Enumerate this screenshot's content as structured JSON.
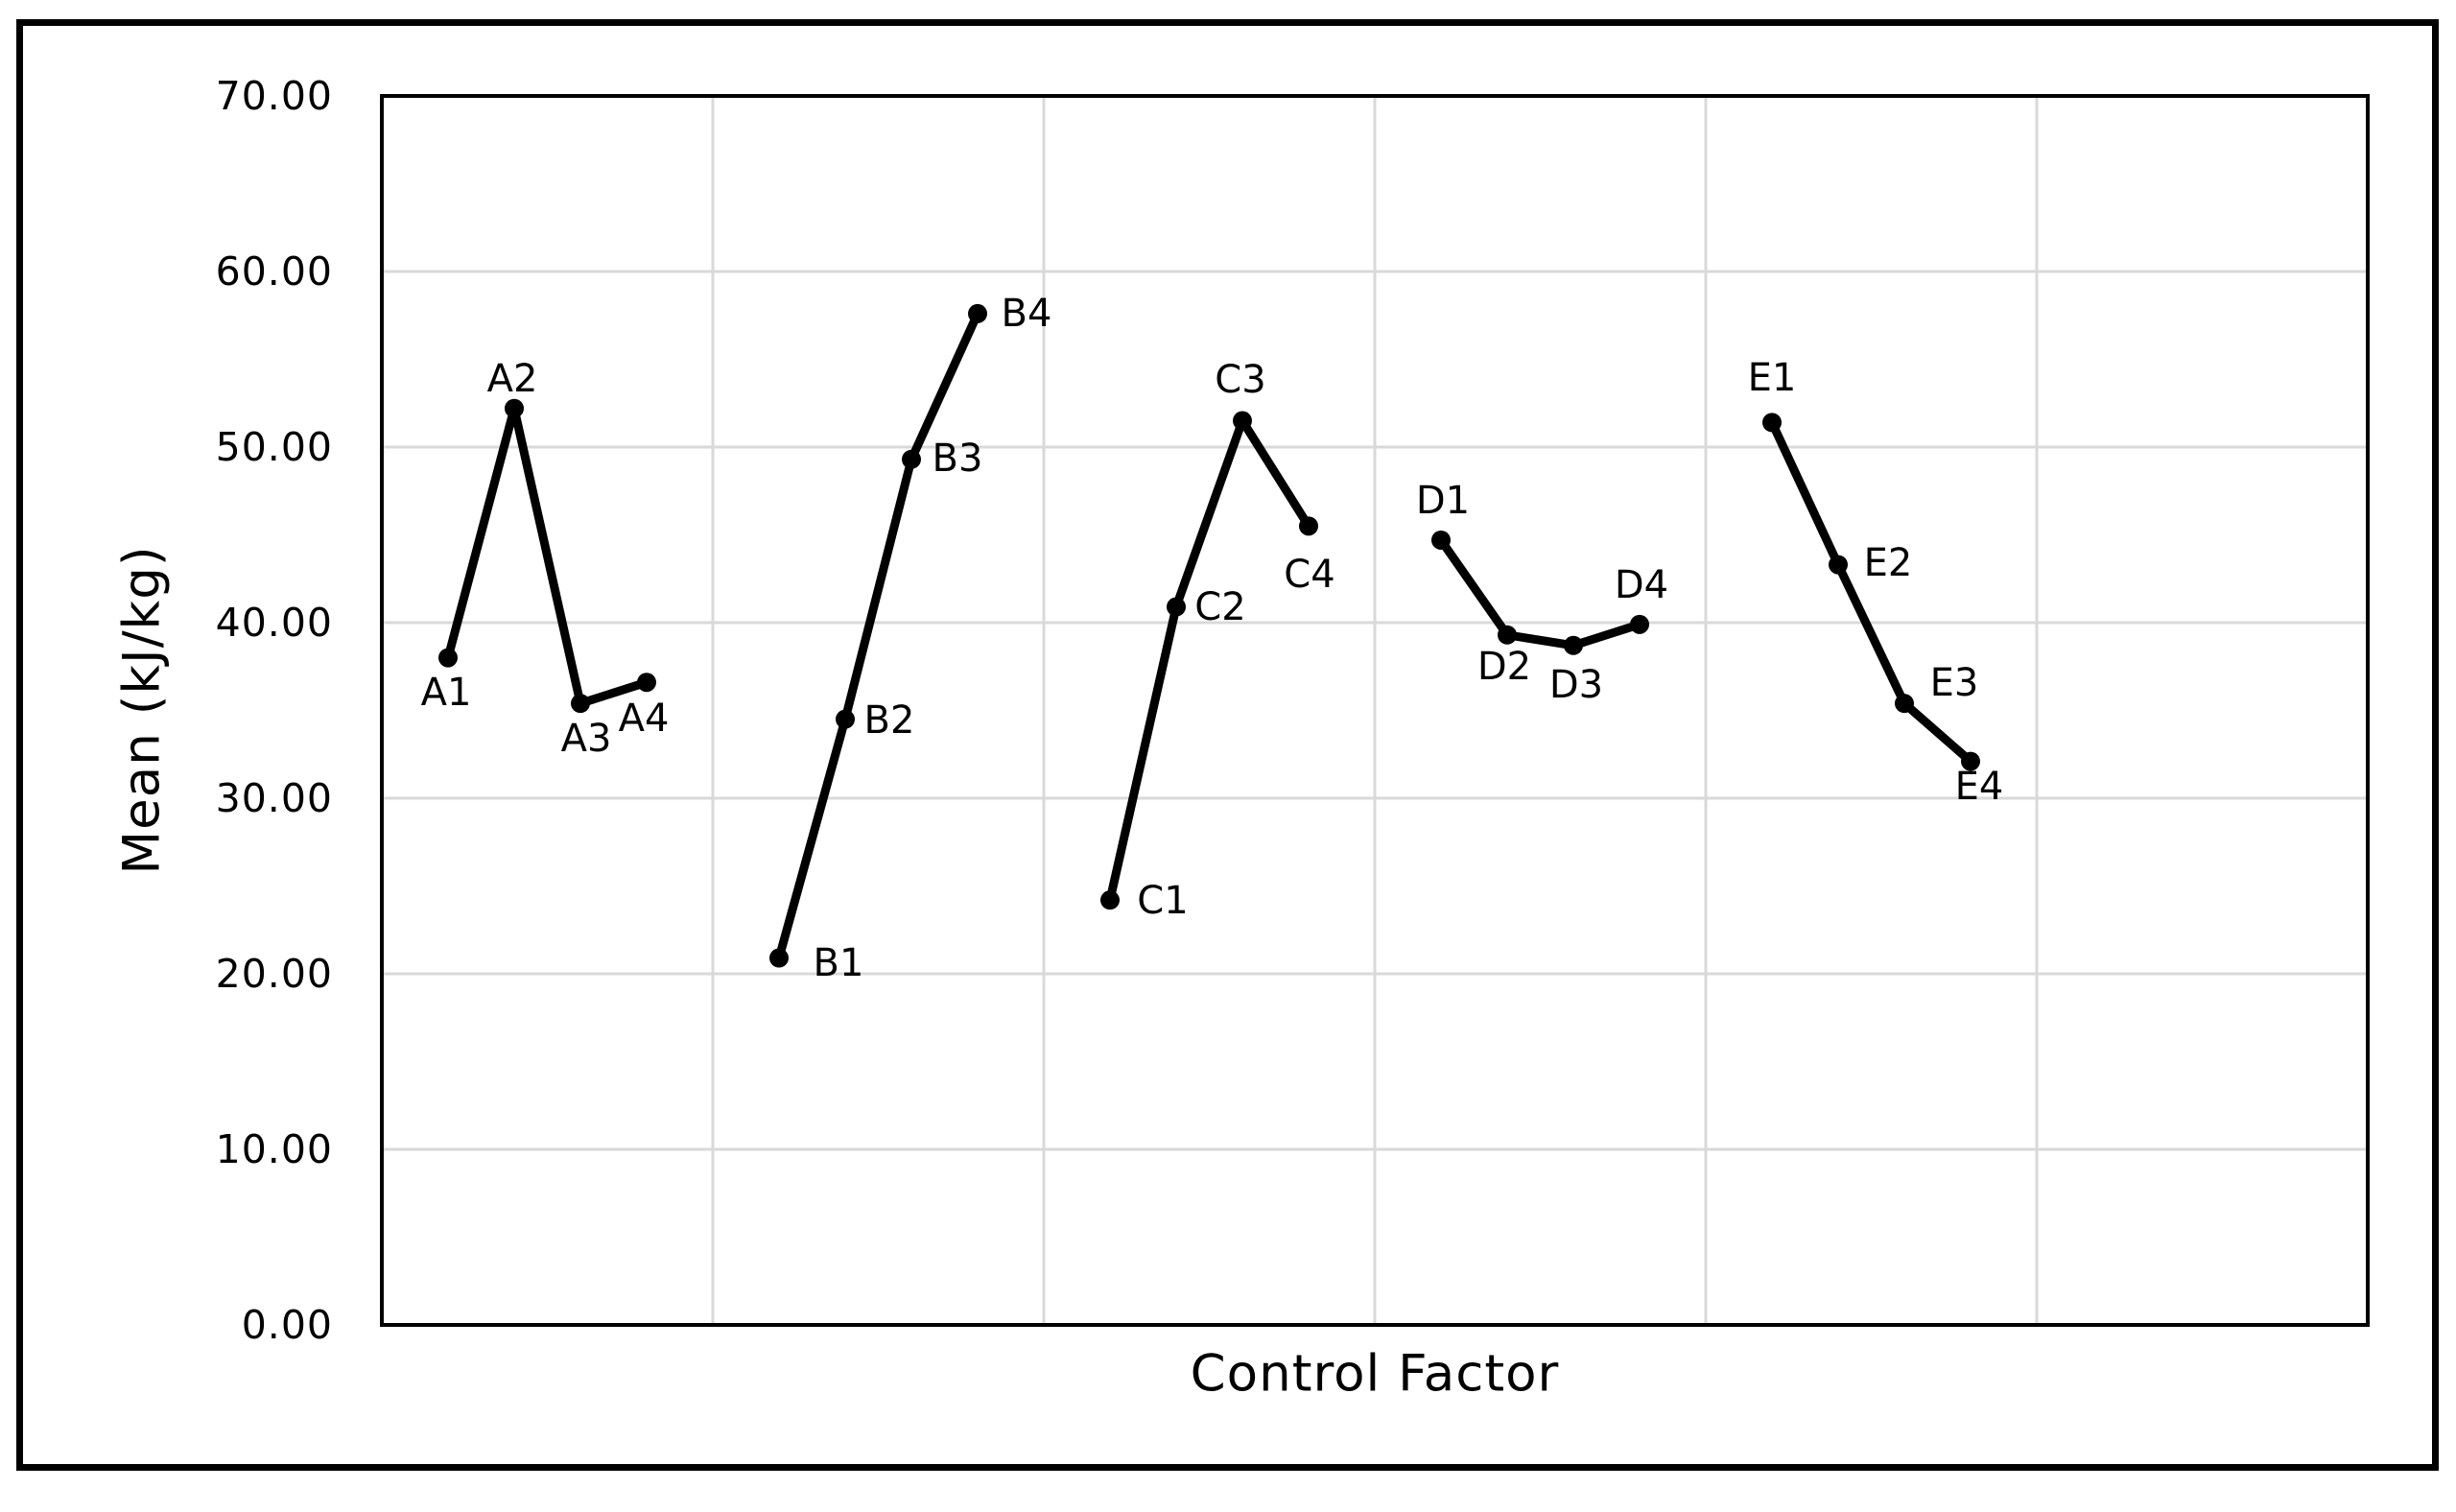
{
  "chart_data": {
    "type": "line",
    "title": "",
    "xlabel": "Control Factor",
    "ylabel": "Mean (kJ/kg)",
    "ylim": [
      0,
      70
    ],
    "y_major_unit": 10,
    "y_tick_labels": [
      "70.00",
      "60.00",
      "50.00",
      "40.00",
      "30.00",
      "20.00",
      "10.00",
      "0.00"
    ],
    "xlim": [
      0,
      30
    ],
    "x_major_unit": 5,
    "x_tick_labels_shown": false,
    "grid": "both",
    "legend": "none",
    "series": [
      {
        "name": "A",
        "x": [
          1,
          2,
          3,
          4
        ],
        "values": [
          38.0,
          52.2,
          35.4,
          36.6
        ],
        "point_labels": [
          "A1",
          "A2",
          "A3",
          "A4"
        ],
        "label_offsets": [
          [
            -2,
            36
          ],
          [
            -2,
            -31
          ],
          [
            6,
            37
          ],
          [
            -3,
            38
          ]
        ]
      },
      {
        "name": "B",
        "x": [
          6,
          7,
          8,
          9
        ],
        "values": [
          20.9,
          34.5,
          49.3,
          57.6
        ],
        "point_labels": [
          "B1",
          "B2",
          "B3",
          "B4"
        ],
        "label_offsets": [
          [
            62,
            5
          ],
          [
            46,
            1
          ],
          [
            48,
            -1
          ],
          [
            51,
            0
          ]
        ]
      },
      {
        "name": "C",
        "x": [
          11,
          12,
          13,
          14
        ],
        "values": [
          24.2,
          40.9,
          51.5,
          45.5
        ],
        "point_labels": [
          "C1",
          "C2",
          "C3",
          "C4"
        ],
        "label_offsets": [
          [
            55,
            1
          ],
          [
            46,
            0
          ],
          [
            -2,
            -43
          ],
          [
            1,
            51
          ]
        ]
      },
      {
        "name": "D",
        "x": [
          16,
          17,
          18,
          19
        ],
        "values": [
          44.7,
          39.3,
          38.7,
          39.9
        ],
        "point_labels": [
          "D1",
          "D2",
          "D3",
          "D4"
        ],
        "label_offsets": [
          [
            2,
            -41
          ],
          [
            -3,
            33
          ],
          [
            3,
            41
          ],
          [
            2,
            -41
          ]
        ]
      },
      {
        "name": "E",
        "x": [
          21,
          22,
          23,
          24
        ],
        "values": [
          51.4,
          43.3,
          35.4,
          32.1
        ],
        "point_labels": [
          "E1",
          "E2",
          "E3",
          "E4"
        ],
        "label_offsets": [
          [
            0,
            -46
          ],
          [
            52,
            -2
          ],
          [
            52,
            -21
          ],
          [
            9,
            26
          ]
        ]
      }
    ],
    "colors": {
      "series_line": "#000000",
      "marker": "#000000",
      "gridline": "#d9d9d9",
      "plot_border": "#000000",
      "outer_border": "#000000",
      "background": "#ffffff",
      "text": "#000000"
    }
  }
}
